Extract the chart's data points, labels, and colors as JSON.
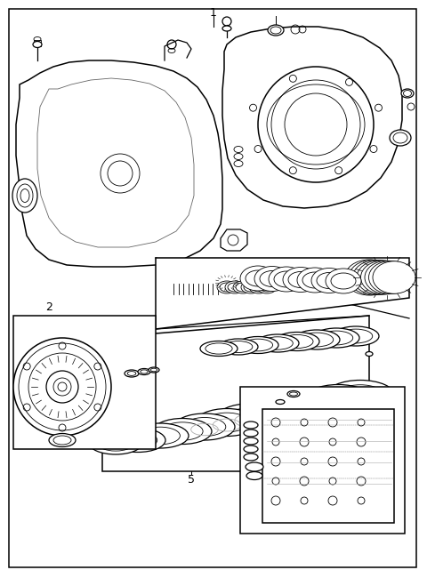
{
  "bg": "#ffffff",
  "lc": "#000000",
  "gray": "#666666",
  "lgray": "#aaaaaa",
  "fig_w": 4.8,
  "fig_h": 6.5,
  "dpi": 100
}
